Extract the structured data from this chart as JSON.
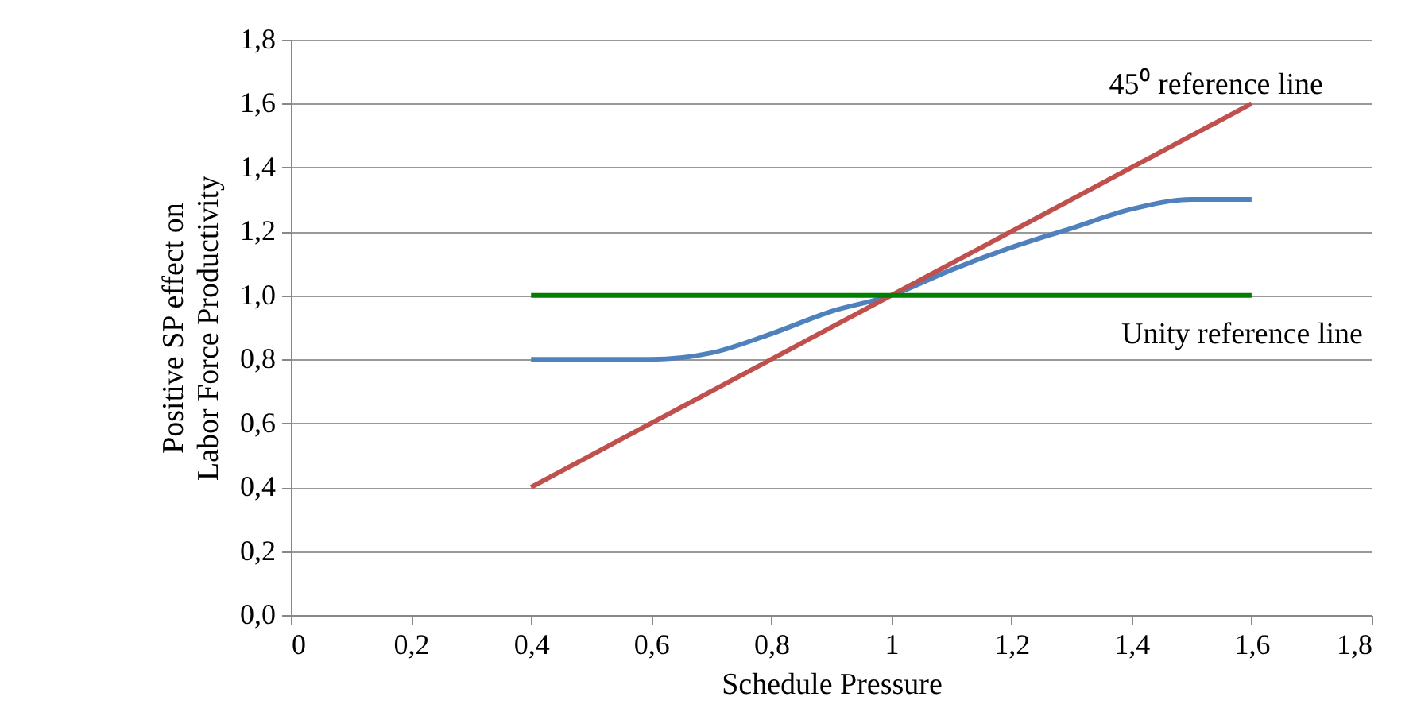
{
  "chart_data": {
    "type": "line",
    "xlabel": "Schedule Pressure",
    "ylabel": "Positive SP effect on\nLabor Force Productivity",
    "xlim": [
      0,
      1.8
    ],
    "xticks": [
      0,
      {
        "value": 0.2,
        "label": "0,2"
      },
      {
        "value": 0.4,
        "label": "0,4"
      },
      {
        "value": 0.6,
        "label": "0,6"
      },
      {
        "value": 0.8,
        "label": "0,8"
      },
      1,
      {
        "value": 1.2,
        "label": "1,2"
      },
      {
        "value": 1.4,
        "label": "1,4"
      },
      {
        "value": 1.6,
        "label": "1,6"
      },
      {
        "value": 1.8,
        "label": "1,8"
      }
    ],
    "ylim": [
      0,
      1.8
    ],
    "yticks": [
      {
        "value": 0,
        "label": "0,0"
      },
      {
        "value": 0.2,
        "label": "0,2"
      },
      {
        "value": 0.4,
        "label": "0,4"
      },
      {
        "value": 0.6,
        "label": "0,6"
      },
      {
        "value": 0.8,
        "label": "0,8"
      },
      {
        "value": 1.0,
        "label": "1,0"
      },
      {
        "value": 1.2,
        "label": "1,2"
      },
      {
        "value": 1.4,
        "label": "1,4"
      },
      {
        "value": 1.6,
        "label": "1,6"
      },
      {
        "value": 1.8,
        "label": "1,8"
      }
    ],
    "grid": "y",
    "legend": false,
    "series": [
      {
        "color": "#4f81bd",
        "x": [
          0.4,
          0.5,
          0.6,
          0.7,
          0.8,
          0.9,
          1.0,
          1.1,
          1.2,
          1.3,
          1.4,
          1.5,
          1.6
        ],
        "values": [
          0.8,
          0.8,
          0.8,
          0.82,
          0.88,
          0.95,
          1.0,
          1.08,
          1.15,
          1.21,
          1.27,
          1.3,
          1.3
        ]
      },
      {
        "name": "45⁰ reference line",
        "color": "#c0504d",
        "x": [
          0.4,
          1.6
        ],
        "values": [
          0.4,
          1.6
        ]
      },
      {
        "name": "Unity reference line",
        "color": "#008000",
        "x": [
          0.4,
          1.6
        ],
        "values": [
          1.0,
          1.0
        ]
      }
    ]
  }
}
